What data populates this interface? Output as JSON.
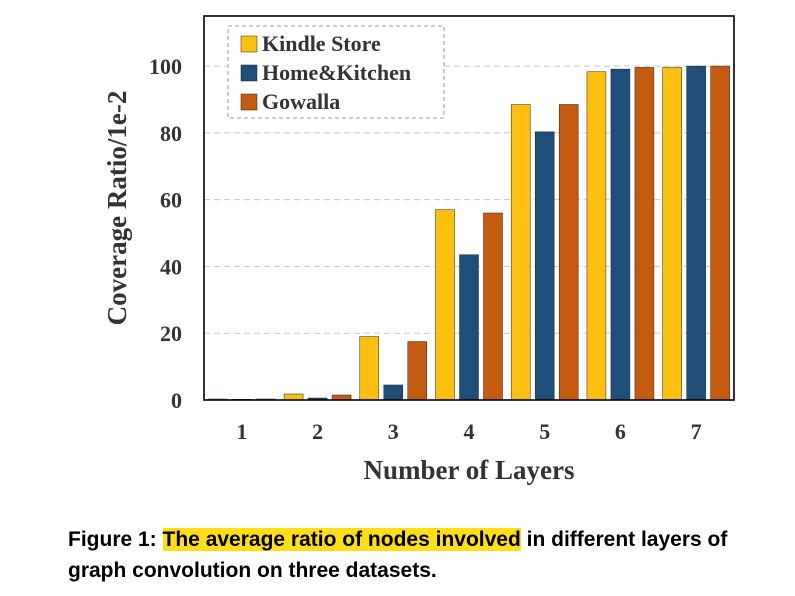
{
  "chart_data": {
    "type": "bar",
    "title": "",
    "xlabel": "Number of Layers",
    "ylabel": "Coverage Ratio/1e-2",
    "categories": [
      "1",
      "2",
      "3",
      "4",
      "5",
      "6",
      "7"
    ],
    "yticks": [
      "0",
      "20",
      "40",
      "60",
      "80",
      "100"
    ],
    "ylim": [
      0,
      115
    ],
    "grid": "horizontal dashed",
    "legend_position": "top-left",
    "series": [
      {
        "name": "Kindle Store",
        "color": "#fdc010",
        "values": [
          0.3,
          1.8,
          19,
          57,
          88.5,
          98.3,
          99.6
        ]
      },
      {
        "name": "Home&Kitchen",
        "color": "#1f4e79",
        "values": [
          0.2,
          0.6,
          4.5,
          43.5,
          80.3,
          99.1,
          100
        ]
      },
      {
        "name": "Gowalla",
        "color": "#c55a11",
        "values": [
          0.3,
          1.5,
          17.5,
          56,
          88.5,
          99.6,
          100
        ]
      }
    ]
  },
  "caption": {
    "label": "Figure 1:",
    "highlight": "The average ratio of nodes involved",
    "rest": "in different layers of graph convolution on three datasets."
  }
}
